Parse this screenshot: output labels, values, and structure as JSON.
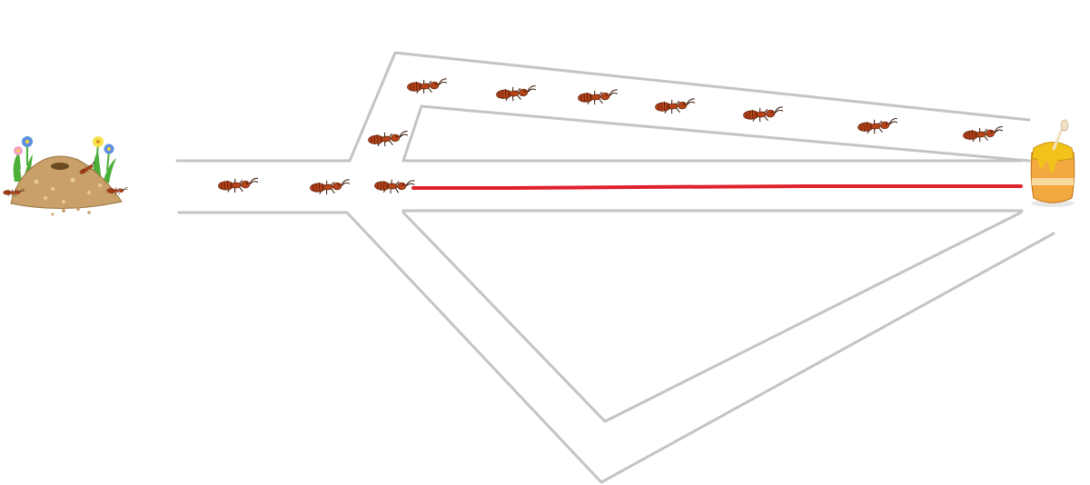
{
  "scene": {
    "nest": {
      "icon": "anthill-with-flowers-icon"
    },
    "food": {
      "icon": "honey-pot-icon"
    },
    "ant_icon": "ant-icon",
    "paths": [
      "upper-path",
      "middle-path",
      "lower-path"
    ],
    "highlighted_path": "middle-path",
    "colors": {
      "path_outline": "#c4c4c4",
      "trail": "#e0202a",
      "ant_body": "#b5441a",
      "ant_stripe": "#6e2008",
      "mound": "#c9a06a",
      "honey": "#f2c21b",
      "pot": "#f3a93f"
    },
    "ants_on_path": {
      "shared-segment": 2,
      "upper-path": 8,
      "middle-path": 1,
      "lower-path": 0
    }
  }
}
